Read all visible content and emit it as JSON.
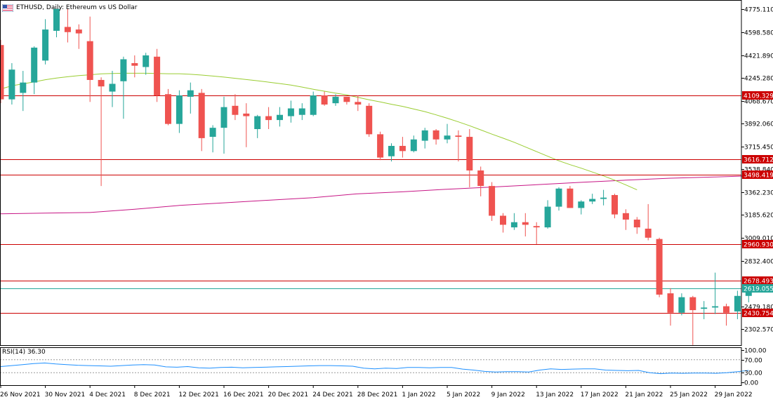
{
  "header": {
    "symbol_title": "ETHUSD, Daily:  Ethereum vs US Dollar",
    "flag_icon": "us-flag-icon"
  },
  "rsi": {
    "title": "RSI(14) 36.30",
    "ticks": [
      "100.00",
      "70.00",
      "30.00",
      "0.00"
    ],
    "levels": [
      100,
      70,
      30,
      0
    ]
  },
  "colors": {
    "bull": "#26a69a",
    "bear": "#ef5350",
    "ma_fast": "#9acd32",
    "ma_slow": "#c71585",
    "hline": "#cc0000",
    "current_line": "#26a69a",
    "rsi_line": "#1e90ff"
  },
  "chart_data": {
    "type": "candlestick",
    "title": "ETHUSD, Daily:  Ethereum vs US Dollar",
    "ylim": [
      2179,
      4832
    ],
    "y_ticks": [
      "4775.110",
      "4598.580",
      "4421.890",
      "4245.280",
      "4068.670",
      "3892.060",
      "3715.450",
      "3538.840",
      "3362.230",
      "3185.620",
      "3009.010",
      "2832.400",
      "2479.180",
      "2302.570"
    ],
    "y_tick_values": [
      4775.11,
      4598.58,
      4421.89,
      4245.28,
      4068.67,
      3892.06,
      3715.45,
      3538.84,
      3362.23,
      3185.62,
      3009.01,
      2832.4,
      2479.18,
      2302.57
    ],
    "x_labels": [
      "26 Nov 2021",
      "30 Nov 2021",
      "4 Dec 2021",
      "8 Dec 2021",
      "12 Dec 2021",
      "16 Dec 2021",
      "20 Dec 2021",
      "24 Dec 2021",
      "28 Dec 2021",
      "1 Jan 2022",
      "5 Jan 2022",
      "9 Jan 2022",
      "13 Jan 2022",
      "17 Jan 2022",
      "21 Jan 2022",
      "25 Jan 2022",
      "29 Jan 2022"
    ],
    "x_label_index": [
      0,
      4,
      8,
      12,
      16,
      20,
      24,
      28,
      32,
      36,
      40,
      44,
      48,
      52,
      56,
      60,
      64
    ],
    "horizontal_levels": [
      {
        "value": 4109.329,
        "label": "4109.329",
        "color": "#cc0000"
      },
      {
        "value": 3616.712,
        "label": "3616.712",
        "color": "#cc0000"
      },
      {
        "value": 3498.419,
        "label": "3498.419",
        "color": "#cc0000"
      },
      {
        "value": 2960.93,
        "label": "2960.930",
        "color": "#cc0000"
      },
      {
        "value": 2678.493,
        "label": "2678.493",
        "color": "#cc0000"
      },
      {
        "value": 2430.754,
        "label": "2430.754",
        "color": "#cc0000"
      },
      {
        "value": 2619.055,
        "label": "2619.055",
        "color": "#26a69a",
        "current": true
      }
    ],
    "candles": [
      {
        "o": 4500,
        "h": 4540,
        "l": 4050,
        "c": 4080
      },
      {
        "o": 4080,
        "h": 4360,
        "l": 4040,
        "c": 4310
      },
      {
        "o": 4130,
        "h": 4300,
        "l": 3990,
        "c": 4210
      },
      {
        "o": 4210,
        "h": 4490,
        "l": 4120,
        "c": 4480
      },
      {
        "o": 4380,
        "h": 4700,
        "l": 4350,
        "c": 4620
      },
      {
        "o": 4610,
        "h": 4770,
        "l": 4560,
        "c": 4780
      },
      {
        "o": 4640,
        "h": 4780,
        "l": 4520,
        "c": 4600
      },
      {
        "o": 4620,
        "h": 4660,
        "l": 4470,
        "c": 4590
      },
      {
        "o": 4530,
        "h": 4720,
        "l": 4060,
        "c": 4230
      },
      {
        "o": 4230,
        "h": 4250,
        "l": 3410,
        "c": 4180
      },
      {
        "o": 4140,
        "h": 4300,
        "l": 4020,
        "c": 4200
      },
      {
        "o": 4220,
        "h": 4410,
        "l": 3930,
        "c": 4390
      },
      {
        "o": 4360,
        "h": 4420,
        "l": 4250,
        "c": 4340
      },
      {
        "o": 4330,
        "h": 4440,
        "l": 4270,
        "c": 4420
      },
      {
        "o": 4410,
        "h": 4470,
        "l": 4060,
        "c": 4110
      },
      {
        "o": 4120,
        "h": 4160,
        "l": 3880,
        "c": 3890
      },
      {
        "o": 3890,
        "h": 4150,
        "l": 3820,
        "c": 4110
      },
      {
        "o": 4100,
        "h": 4210,
        "l": 3970,
        "c": 4150
      },
      {
        "o": 4130,
        "h": 4160,
        "l": 3680,
        "c": 3780
      },
      {
        "o": 3790,
        "h": 3880,
        "l": 3670,
        "c": 3860
      },
      {
        "o": 3860,
        "h": 4100,
        "l": 3660,
        "c": 4020
      },
      {
        "o": 4030,
        "h": 4120,
        "l": 3920,
        "c": 3960
      },
      {
        "o": 3970,
        "h": 4050,
        "l": 3710,
        "c": 3950
      },
      {
        "o": 3850,
        "h": 3960,
        "l": 3780,
        "c": 3950
      },
      {
        "o": 3950,
        "h": 4020,
        "l": 3850,
        "c": 3920
      },
      {
        "o": 3920,
        "h": 4020,
        "l": 3870,
        "c": 3960
      },
      {
        "o": 3950,
        "h": 4070,
        "l": 3900,
        "c": 4010
      },
      {
        "o": 3960,
        "h": 4050,
        "l": 3920,
        "c": 4010
      },
      {
        "o": 3960,
        "h": 4140,
        "l": 3950,
        "c": 4110
      },
      {
        "o": 4110,
        "h": 4140,
        "l": 4030,
        "c": 4040
      },
      {
        "o": 4050,
        "h": 4120,
        "l": 4030,
        "c": 4100
      },
      {
        "o": 4100,
        "h": 4100,
        "l": 4040,
        "c": 4060
      },
      {
        "o": 4060,
        "h": 4110,
        "l": 3990,
        "c": 4040
      },
      {
        "o": 4030,
        "h": 4050,
        "l": 3790,
        "c": 3810
      },
      {
        "o": 3810,
        "h": 3830,
        "l": 3610,
        "c": 3630
      },
      {
        "o": 3640,
        "h": 3740,
        "l": 3600,
        "c": 3720
      },
      {
        "o": 3720,
        "h": 3790,
        "l": 3630,
        "c": 3680
      },
      {
        "o": 3680,
        "h": 3800,
        "l": 3670,
        "c": 3770
      },
      {
        "o": 3760,
        "h": 3860,
        "l": 3700,
        "c": 3840
      },
      {
        "o": 3840,
        "h": 3850,
        "l": 3730,
        "c": 3770
      },
      {
        "o": 3770,
        "h": 3890,
        "l": 3740,
        "c": 3800
      },
      {
        "o": 3800,
        "h": 3840,
        "l": 3600,
        "c": 3790
      },
      {
        "o": 3790,
        "h": 3850,
        "l": 3400,
        "c": 3530
      },
      {
        "o": 3530,
        "h": 3560,
        "l": 3330,
        "c": 3410
      },
      {
        "o": 3410,
        "h": 3440,
        "l": 3140,
        "c": 3180
      },
      {
        "o": 3180,
        "h": 3200,
        "l": 3050,
        "c": 3110
      },
      {
        "o": 3090,
        "h": 3200,
        "l": 3070,
        "c": 3130
      },
      {
        "o": 3130,
        "h": 3200,
        "l": 3020,
        "c": 3110
      },
      {
        "o": 3100,
        "h": 3130,
        "l": 2960,
        "c": 3090
      },
      {
        "o": 3090,
        "h": 3300,
        "l": 3080,
        "c": 3250
      },
      {
        "o": 3250,
        "h": 3400,
        "l": 3220,
        "c": 3390
      },
      {
        "o": 3390,
        "h": 3410,
        "l": 3240,
        "c": 3240
      },
      {
        "o": 3240,
        "h": 3300,
        "l": 3190,
        "c": 3290
      },
      {
        "o": 3290,
        "h": 3350,
        "l": 3270,
        "c": 3310
      },
      {
        "o": 3310,
        "h": 3380,
        "l": 3260,
        "c": 3320
      },
      {
        "o": 3340,
        "h": 3350,
        "l": 3160,
        "c": 3190
      },
      {
        "o": 3200,
        "h": 3230,
        "l": 3070,
        "c": 3150
      },
      {
        "o": 3150,
        "h": 3170,
        "l": 3040,
        "c": 3090
      },
      {
        "o": 3080,
        "h": 3270,
        "l": 2990,
        "c": 3010
      },
      {
        "o": 3000,
        "h": 3010,
        "l": 2550,
        "c": 2570
      },
      {
        "o": 2580,
        "h": 2620,
        "l": 2330,
        "c": 2430
      },
      {
        "o": 2430,
        "h": 2580,
        "l": 2410,
        "c": 2550
      },
      {
        "o": 2550,
        "h": 2560,
        "l": 2180,
        "c": 2450
      },
      {
        "o": 2460,
        "h": 2520,
        "l": 2380,
        "c": 2470
      },
      {
        "o": 2470,
        "h": 2740,
        "l": 2420,
        "c": 2480
      },
      {
        "o": 2480,
        "h": 2500,
        "l": 2330,
        "c": 2430
      },
      {
        "o": 2440,
        "h": 2600,
        "l": 2380,
        "c": 2560
      },
      {
        "o": 2560,
        "h": 2640,
        "l": 2510,
        "c": 2620
      }
    ],
    "ma_fast": [
      [
        0,
        4160
      ],
      [
        1,
        4185
      ],
      [
        2,
        4200
      ],
      [
        3,
        4215
      ],
      [
        4,
        4232
      ],
      [
        5,
        4245
      ],
      [
        6,
        4255
      ],
      [
        7,
        4264
      ],
      [
        8,
        4270
      ],
      [
        9,
        4277
      ],
      [
        10,
        4280
      ],
      [
        11,
        4282
      ],
      [
        12,
        4282
      ],
      [
        13,
        4282
      ],
      [
        14,
        4280
      ],
      [
        15,
        4278
      ],
      [
        16,
        4278
      ],
      [
        17,
        4274
      ],
      [
        18,
        4268
      ],
      [
        19,
        4260
      ],
      [
        20,
        4252
      ],
      [
        21,
        4243
      ],
      [
        22,
        4233
      ],
      [
        23,
        4224
      ],
      [
        24,
        4213
      ],
      [
        25,
        4202
      ],
      [
        26,
        4190
      ],
      [
        27,
        4175
      ],
      [
        28,
        4158
      ],
      [
        29,
        4143
      ],
      [
        30,
        4128
      ],
      [
        31,
        4114
      ],
      [
        32,
        4095
      ],
      [
        33,
        4077
      ],
      [
        34,
        4060
      ],
      [
        35,
        4042
      ],
      [
        36,
        4026
      ],
      [
        37,
        4005
      ],
      [
        38,
        3985
      ],
      [
        39,
        3960
      ],
      [
        40,
        3934
      ],
      [
        41,
        3906
      ],
      [
        42,
        3876
      ],
      [
        43,
        3844
      ],
      [
        44,
        3811
      ],
      [
        45,
        3780
      ],
      [
        46,
        3748
      ],
      [
        47,
        3712
      ],
      [
        48,
        3676
      ],
      [
        49,
        3640
      ],
      [
        50,
        3605
      ],
      [
        51,
        3575
      ],
      [
        52,
        3548
      ],
      [
        53,
        3518
      ],
      [
        54,
        3488
      ],
      [
        55,
        3455
      ],
      [
        56,
        3418
      ],
      [
        57,
        3380
      ]
    ],
    "ma_slow": [
      [
        0,
        3195
      ],
      [
        4,
        3200
      ],
      [
        8,
        3205
      ],
      [
        12,
        3230
      ],
      [
        16,
        3260
      ],
      [
        20,
        3280
      ],
      [
        24,
        3300
      ],
      [
        28,
        3320
      ],
      [
        32,
        3350
      ],
      [
        36,
        3365
      ],
      [
        40,
        3385
      ],
      [
        44,
        3402
      ],
      [
        48,
        3420
      ],
      [
        52,
        3438
      ],
      [
        56,
        3455
      ],
      [
        60,
        3470
      ],
      [
        64,
        3480
      ],
      [
        67,
        3488
      ]
    ]
  }
}
